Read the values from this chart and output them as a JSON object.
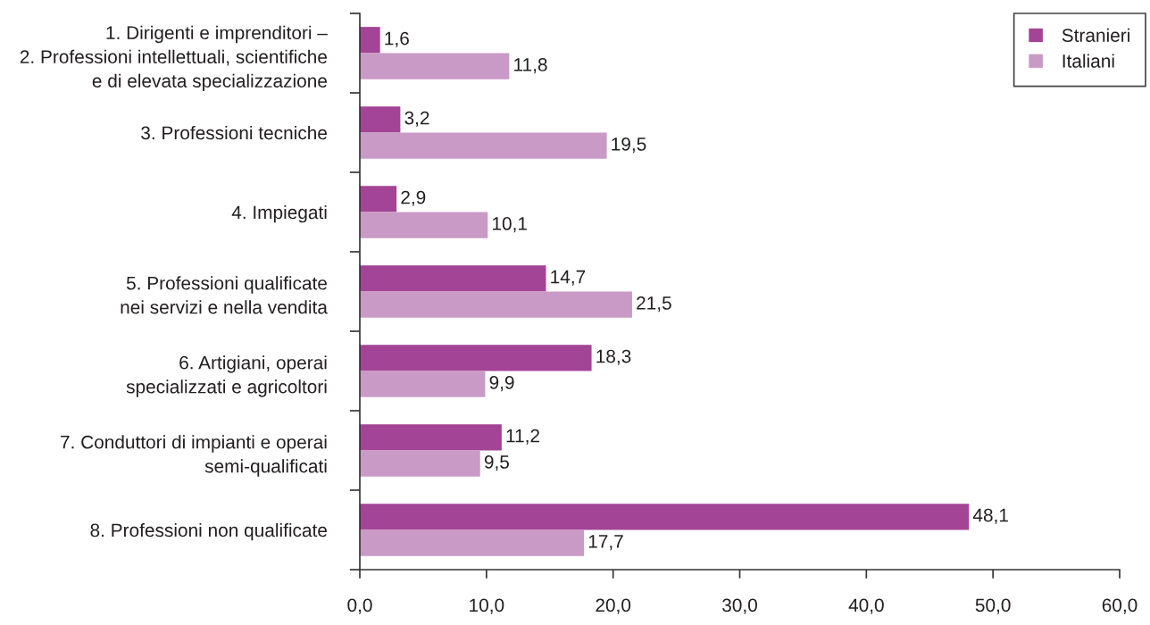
{
  "chart_data": {
    "type": "bar",
    "orientation": "horizontal",
    "categories": [
      "1. Dirigenti e imprenditori –\n2. Professioni intellettuali, scientifiche\ne di elevata specializzazione",
      "3. Professioni tecniche",
      "4. Impiegati",
      "5. Professioni qualificate\nnei servizi e nella vendita",
      "6. Artigiani, operai\nspecializzati e agricoltori",
      "7. Conduttori di impianti e operai\nsemi-qualificati",
      "8. Professioni non qualificate"
    ],
    "series": [
      {
        "name": "Stranieri",
        "color": "#a34496",
        "values": [
          1.6,
          3.2,
          2.9,
          14.7,
          18.3,
          11.2,
          48.1
        ],
        "value_labels": [
          "1,6",
          "3,2",
          "2,9",
          "14,7",
          "18,3",
          "11,2",
          "48,1"
        ]
      },
      {
        "name": "Italiani",
        "color": "#c99ac5",
        "values": [
          11.8,
          19.5,
          10.1,
          21.5,
          9.9,
          9.5,
          17.7
        ],
        "value_labels": [
          "11,8",
          "19,5",
          "10,1",
          "21,5",
          "9,9",
          "9,5",
          "17,7"
        ]
      }
    ],
    "xlim": [
      0,
      60
    ],
    "xticks": [
      {
        "value": 0,
        "label": "0,0"
      },
      {
        "value": 10,
        "label": "10,0"
      },
      {
        "value": 20,
        "label": "20,0"
      },
      {
        "value": 30,
        "label": "30,0"
      },
      {
        "value": 40,
        "label": "40,0"
      },
      {
        "value": 50,
        "label": "50,0"
      },
      {
        "value": 60,
        "label": "60,0"
      }
    ],
    "legend": "top right"
  }
}
